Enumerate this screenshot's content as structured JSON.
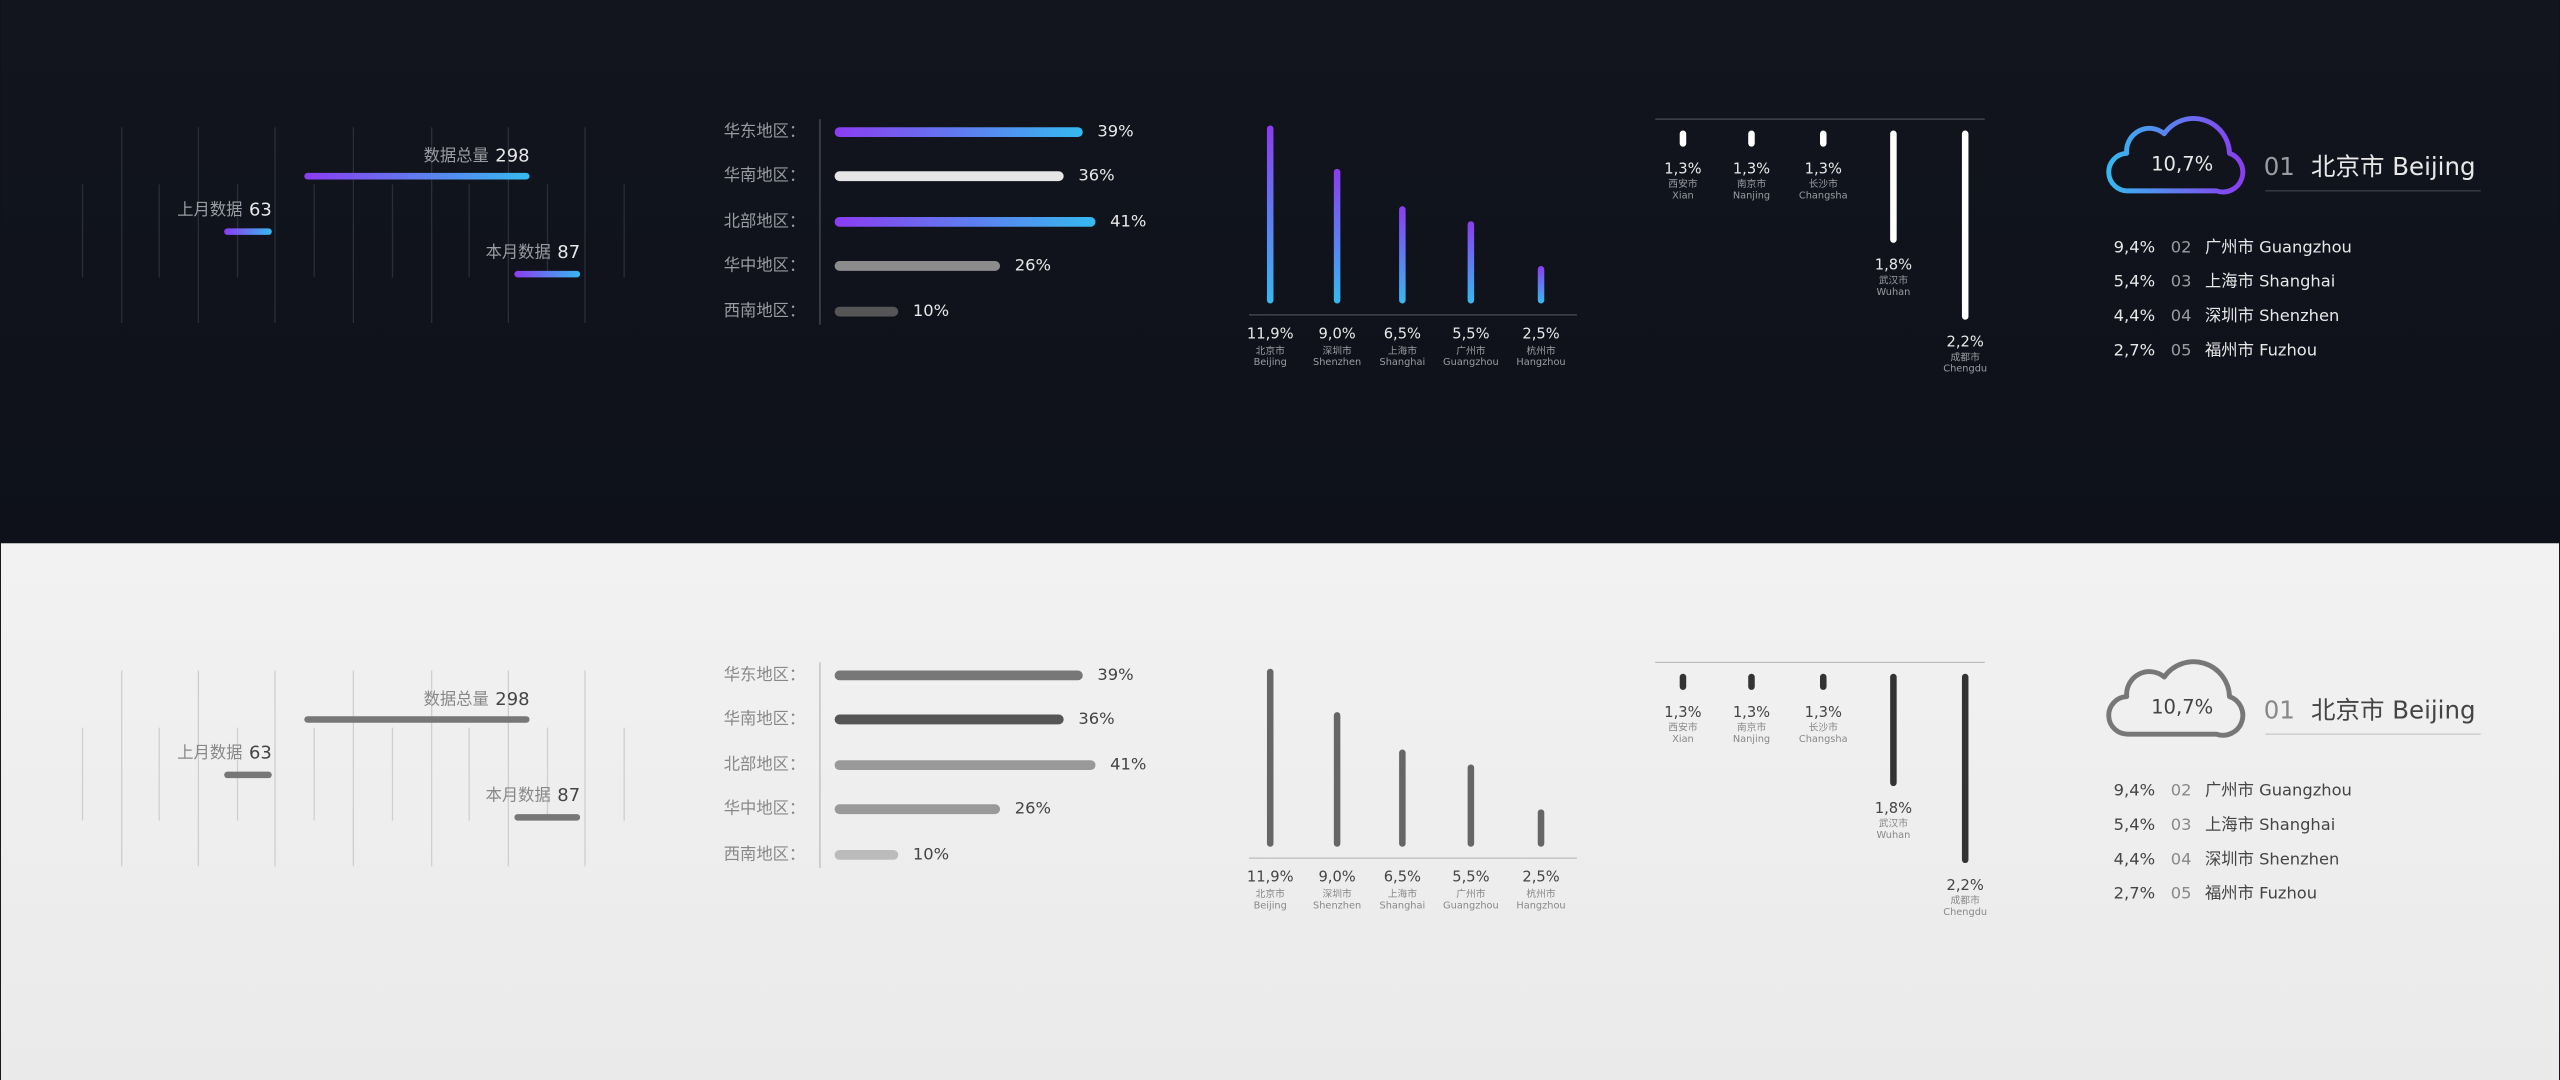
{
  "chart_data": [
    {
      "type": "floating-bar",
      "categories": [
        "上月数据",
        "数据总量",
        "本月数据"
      ],
      "values": [
        63,
        298,
        87
      ],
      "xlim": [
        0,
        300
      ],
      "gradient": [
        "#8b3cf1",
        "#36b9ef"
      ],
      "color_dark": "gradient",
      "color_light": "#777777"
    },
    {
      "type": "bar",
      "categories": [
        "华东地区：",
        "华南地区：",
        "北部地区：",
        "华中地区：",
        "西南地区："
      ],
      "values": [
        39,
        36,
        41,
        26,
        10
      ],
      "value_labels": [
        "39%",
        "36%",
        "41%",
        "26%",
        "10%"
      ],
      "xlim": [
        0,
        100
      ],
      "colors_dark": [
        "gradient",
        "#e6e6e6",
        "gradient",
        "#8c8c8c",
        "#555555"
      ],
      "colors_light": [
        "#777777",
        "#555555",
        "#999999",
        "#999999",
        "#bbbbbb"
      ]
    },
    {
      "type": "column",
      "categories": [
        "北京市",
        "深圳市",
        "上海市",
        "广州市",
        "杭州市"
      ],
      "categories_en": [
        "Beijing",
        "Shenzhen",
        "Shanghai",
        "Guangzhou",
        "Hangzhou"
      ],
      "values": [
        11.9,
        9.0,
        6.5,
        5.5,
        2.5
      ],
      "value_labels": [
        "11,9%",
        "9,0%",
        "6,5%",
        "5,5%",
        "2,5%"
      ],
      "ylim": [
        0,
        12
      ],
      "color_dark": "gradient",
      "color_light": "#666666"
    },
    {
      "type": "hanging-bar",
      "categories": [
        "西安市",
        "南京市",
        "长沙市",
        "武汉市",
        "成都市"
      ],
      "categories_en": [
        "Xian",
        "Nanjing",
        "Changsha",
        "Wuhan",
        "Chengdu"
      ],
      "values": [
        1.3,
        1.3,
        1.3,
        1.8,
        2.2
      ],
      "value_labels": [
        "1,3%",
        "1,3%",
        "1,3%",
        "1,8%",
        "2,2%"
      ],
      "ylim": [
        1.25,
        2.2
      ],
      "color_dark": "#ffffff",
      "color_light": "#333333"
    },
    {
      "type": "ranking",
      "color_dark": "gradient",
      "color_light": "#777777",
      "items": [
        {
          "rank": "01",
          "name": "北京市 Beijing",
          "value": "10,7%"
        },
        {
          "rank": "02",
          "name": "广州市 Guangzhou",
          "value": "9,4%"
        },
        {
          "rank": "03",
          "name": "上海市 Shanghai",
          "value": "5,4%"
        },
        {
          "rank": "04",
          "name": "深圳市 Shenzhen",
          "value": "4,4%"
        },
        {
          "rank": "05",
          "name": "福州市 Fuzhou",
          "value": "2,7%"
        }
      ]
    }
  ]
}
